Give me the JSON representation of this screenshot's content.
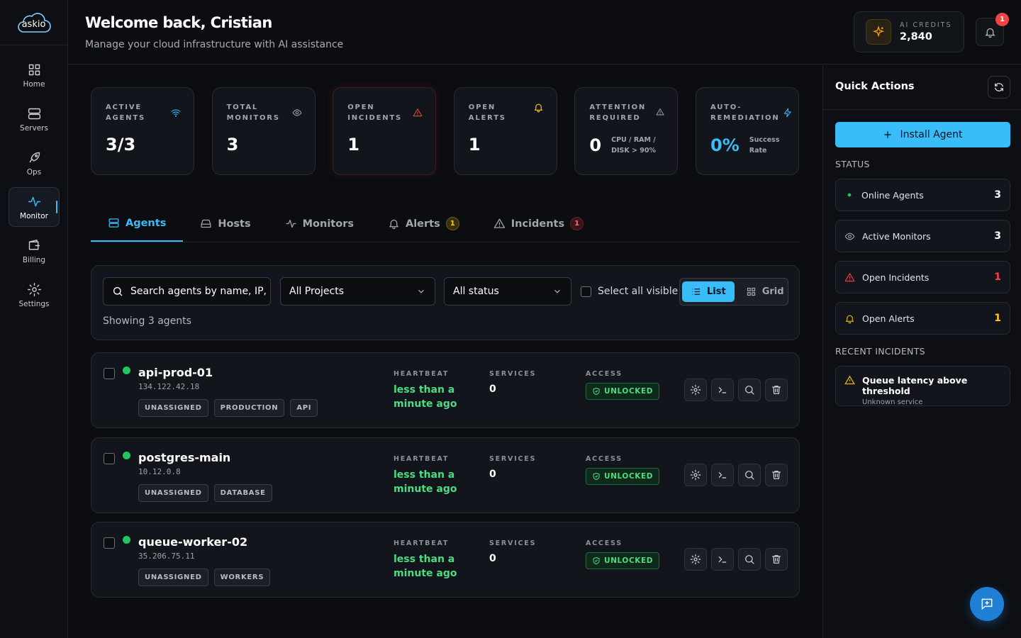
{
  "sidebar": {
    "logo": "askio",
    "nav": [
      "Home",
      "Servers",
      "Ops",
      "Monitor",
      "Billing",
      "Settings"
    ]
  },
  "header": {
    "title": "Welcome back, Cristian",
    "subtitle": "Manage your cloud infrastructure with AI assistance",
    "credits_label": "AI CREDITS",
    "credits": "2,840",
    "notifications": 1
  },
  "stats": [
    {
      "label": "ACTIVE AGENTS",
      "value": "3/3"
    },
    {
      "label": "TOTAL MONITORS",
      "value": 3
    },
    {
      "label": "OPEN INCIDENTS",
      "value": 1
    },
    {
      "label": "OPEN ALERTS",
      "value": 1
    },
    {
      "label": "ATTENTION REQUIRED",
      "value": 0,
      "note": "CPU / RAM / DISK > 90%"
    },
    {
      "label": "AUTO-REMEDIATION",
      "value": "0%",
      "note": "Success Rate"
    }
  ],
  "tabs": [
    {
      "label": "Agents"
    },
    {
      "label": "Hosts"
    },
    {
      "label": "Monitors"
    },
    {
      "label": "Alerts",
      "badge": 1
    },
    {
      "label": "Incidents",
      "badge": 1
    }
  ],
  "filters": {
    "search": "Search agents by name, IP, p",
    "project": "All Projects",
    "status": "All status",
    "select_all": "Select all visible",
    "list": "List",
    "grid": "Grid",
    "showing": "Showing 3 agents"
  },
  "columns": {
    "heartbeat": "HEARTBEAT",
    "services": "SERVICES",
    "access": "ACCESS"
  },
  "agents": [
    {
      "name": "api-prod-01",
      "ip": "134.122.42.18",
      "tags": [
        "UNASSIGNED",
        "PRODUCTION",
        "API"
      ],
      "heartbeat": "less than a minute ago",
      "services": 0,
      "access": "UNLOCKED"
    },
    {
      "name": "postgres-main",
      "ip": "10.12.0.8",
      "tags": [
        "UNASSIGNED",
        "DATABASE"
      ],
      "heartbeat": "less than a minute ago",
      "services": 0,
      "access": "UNLOCKED"
    },
    {
      "name": "queue-worker-02",
      "ip": "35.206.75.11",
      "tags": [
        "UNASSIGNED",
        "WORKERS"
      ],
      "heartbeat": "less than a minute ago",
      "services": 0,
      "access": "UNLOCKED"
    }
  ],
  "quick_actions": {
    "title": "Quick Actions",
    "install": "Install Agent",
    "status_heading": "STATUS",
    "status": [
      {
        "label": "Online Agents",
        "value": 3
      },
      {
        "label": "Active Monitors",
        "value": 3
      },
      {
        "label": "Open Incidents",
        "value": 1
      },
      {
        "label": "Open Alerts",
        "value": 1
      }
    ],
    "recent_heading": "RECENT INCIDENTS",
    "incidents": [
      {
        "title": "Queue latency above threshold",
        "service": "Unknown service"
      }
    ]
  }
}
